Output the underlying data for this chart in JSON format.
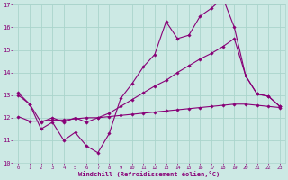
{
  "xlabel": "Windchill (Refroidissement éolien,°C)",
  "bg_color": "#cce9e4",
  "grid_color": "#aad4cc",
  "line_color": "#880077",
  "xlim": [
    -0.5,
    23.5
  ],
  "ylim": [
    10,
    17
  ],
  "yticks": [
    10,
    11,
    12,
    13,
    14,
    15,
    16,
    17
  ],
  "xticks": [
    0,
    1,
    2,
    3,
    4,
    5,
    6,
    7,
    8,
    9,
    10,
    11,
    12,
    13,
    14,
    15,
    16,
    17,
    18,
    19,
    20,
    21,
    22,
    23
  ],
  "series1_y": [
    13.1,
    12.6,
    11.5,
    11.8,
    11.0,
    11.35,
    10.75,
    10.45,
    11.3,
    12.85,
    13.5,
    14.25,
    14.8,
    16.25,
    15.5,
    15.65,
    16.5,
    16.85,
    17.3,
    16.0,
    13.85,
    13.05,
    12.95,
    12.5
  ],
  "series2_y": [
    13.0,
    12.6,
    11.8,
    12.0,
    11.8,
    12.0,
    11.8,
    12.0,
    12.2,
    12.5,
    12.8,
    13.1,
    13.4,
    13.65,
    14.0,
    14.3,
    14.6,
    14.85,
    15.15,
    15.5,
    13.85,
    13.05,
    12.95,
    12.5
  ],
  "series3_y": [
    12.05,
    11.85,
    11.85,
    11.9,
    11.9,
    11.95,
    12.0,
    12.0,
    12.05,
    12.1,
    12.15,
    12.2,
    12.25,
    12.3,
    12.35,
    12.4,
    12.45,
    12.5,
    12.55,
    12.6,
    12.6,
    12.55,
    12.5,
    12.45
  ]
}
